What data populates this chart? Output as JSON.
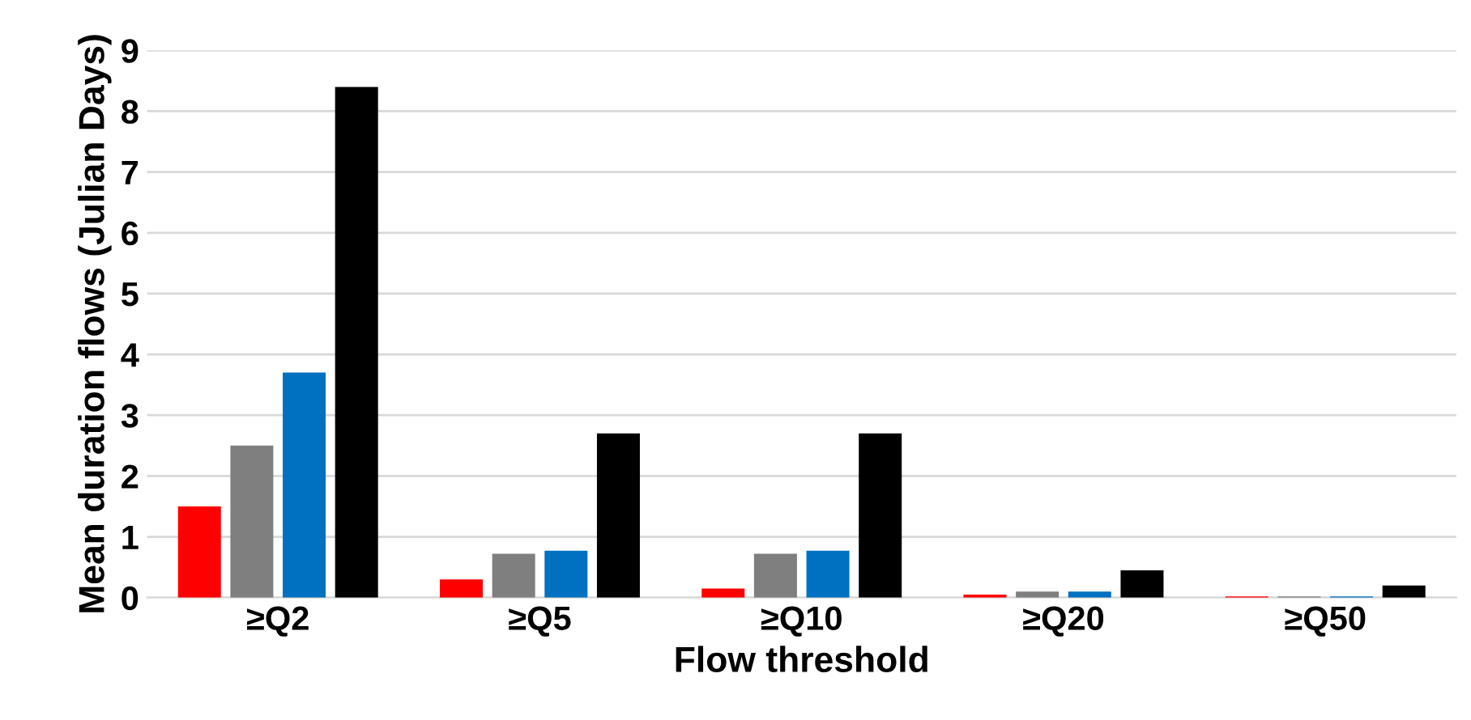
{
  "chart_data": {
    "type": "bar",
    "xlabel": "Flow threshold",
    "ylabel": "Mean duration flows (Julian Days)",
    "categories": [
      "≥Q2",
      "≥Q5",
      "≥Q10",
      "≥Q20",
      "≥Q50"
    ],
    "series": [
      {
        "color": "#ff0000",
        "values": [
          1.5,
          0.3,
          0.15,
          0.05,
          0.02
        ]
      },
      {
        "color": "#7f7f7f",
        "values": [
          2.5,
          0.72,
          0.72,
          0.1,
          0.02
        ]
      },
      {
        "color": "#0070c0",
        "values": [
          3.7,
          0.77,
          0.77,
          0.1,
          0.02
        ]
      },
      {
        "color": "#000000",
        "values": [
          8.4,
          2.7,
          2.7,
          0.45,
          0.2
        ]
      }
    ],
    "ylim": [
      0,
      9
    ],
    "yticks": [
      0,
      1,
      2,
      3,
      4,
      5,
      6,
      7,
      8,
      9
    ],
    "grid": "y"
  }
}
